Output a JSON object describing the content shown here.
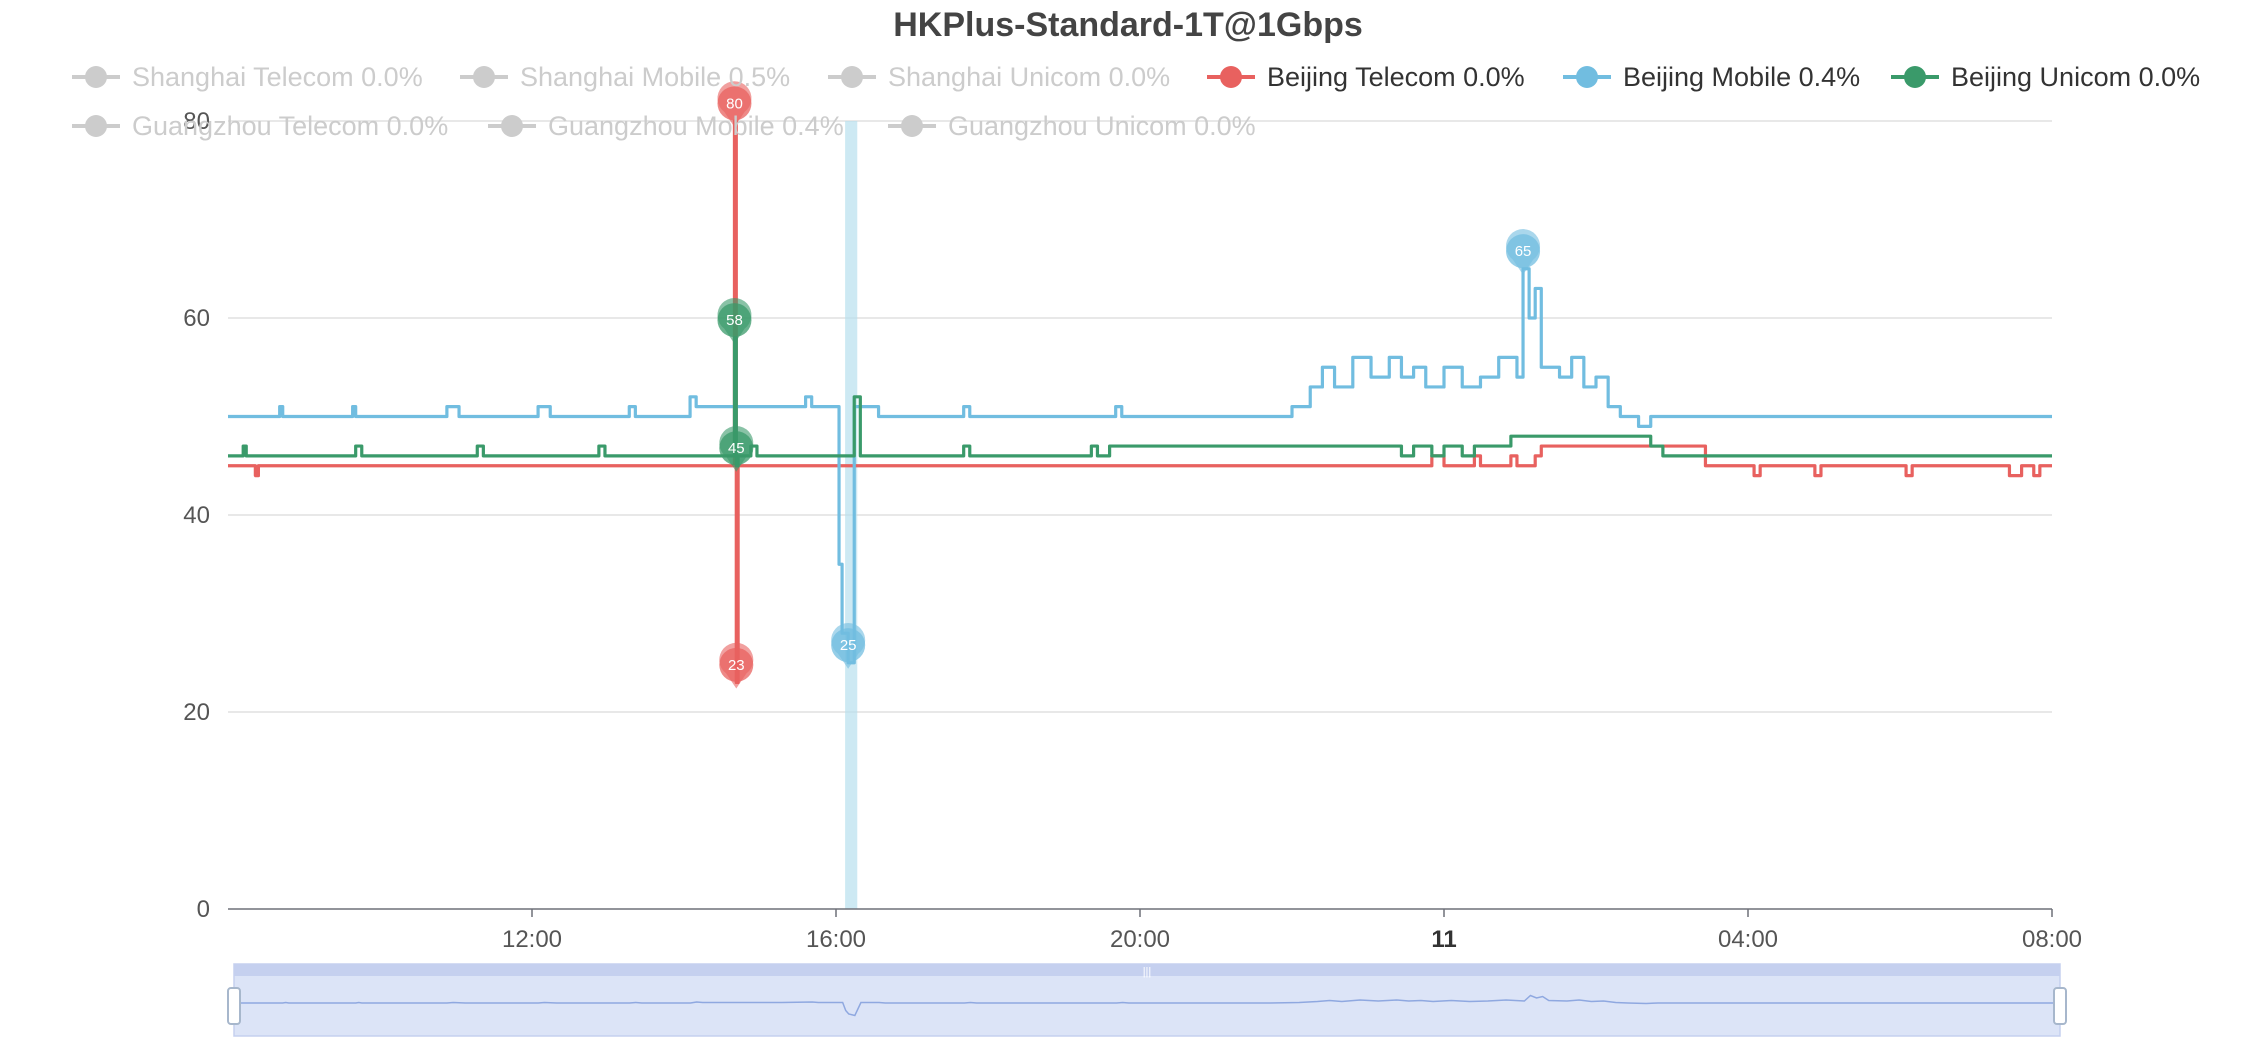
{
  "chart_data": {
    "type": "line",
    "title": "HKPlus-Standard-1T@1Gbps",
    "xlabel": "",
    "ylabel": "",
    "y_ticks": [
      "0",
      "20",
      "40",
      "60",
      "80"
    ],
    "ylim": [
      0,
      80
    ],
    "x_ticks": [
      "12:00",
      "16:00",
      "20:00",
      "11",
      "04:00",
      "08:00"
    ],
    "x_tick_bold": [
      false,
      false,
      false,
      true,
      false,
      false
    ],
    "grid": "horizontal",
    "legend_position": "top",
    "legend": [
      {
        "label": "Shanghai Telecom 0.0%",
        "active": false,
        "color": "#cccccc"
      },
      {
        "label": "Shanghai Mobile 0.5%",
        "active": false,
        "color": "#cccccc"
      },
      {
        "label": "Shanghai Unicom 0.0%",
        "active": false,
        "color": "#cccccc"
      },
      {
        "label": "Beijing Telecom 0.0%",
        "active": true,
        "color": "#e8615f"
      },
      {
        "label": "Beijing Mobile 0.4%",
        "active": true,
        "color": "#71bde0"
      },
      {
        "label": "Beijing Unicom 0.0%",
        "active": true,
        "color": "#3a9a6a"
      },
      {
        "label": "Guangzhou Telecom 0.0%",
        "active": false,
        "color": "#cccccc"
      },
      {
        "label": "Guangzhou Mobile 0.4%",
        "active": false,
        "color": "#cccccc"
      },
      {
        "label": "Guangzhou Unicom 0.0%",
        "active": false,
        "color": "#cccccc"
      }
    ],
    "x_unit": "hours from 08:00 on day 10",
    "series": [
      {
        "name": "Beijing Telecom",
        "color": "#e8615f",
        "points": [
          [
            0,
            45
          ],
          [
            0.4,
            45
          ],
          [
            0.45,
            44
          ],
          [
            0.5,
            45
          ],
          [
            8.3,
            45
          ],
          [
            8.33,
            80
          ],
          [
            8.36,
            23
          ],
          [
            8.39,
            45
          ],
          [
            19.6,
            45
          ],
          [
            19.8,
            46
          ],
          [
            20,
            45
          ],
          [
            20.5,
            46
          ],
          [
            20.6,
            45
          ],
          [
            21.1,
            46
          ],
          [
            21.2,
            45
          ],
          [
            21.5,
            46
          ],
          [
            21.6,
            47
          ],
          [
            24.2,
            47
          ],
          [
            24.3,
            45
          ],
          [
            25,
            45
          ],
          [
            25.1,
            44
          ],
          [
            25.2,
            45
          ],
          [
            26,
            45
          ],
          [
            26.1,
            44
          ],
          [
            26.2,
            45
          ],
          [
            27.5,
            45
          ],
          [
            27.6,
            44
          ],
          [
            27.7,
            45
          ],
          [
            29.2,
            45
          ],
          [
            29.3,
            44
          ],
          [
            29.5,
            45
          ],
          [
            29.7,
            44
          ],
          [
            29.8,
            45
          ],
          [
            30,
            45
          ]
        ],
        "markers": [
          {
            "value": 80,
            "x": 8.33
          },
          {
            "value": 23,
            "x": 8.36
          }
        ]
      },
      {
        "name": "Beijing Mobile",
        "color": "#71bde0",
        "points": [
          [
            0,
            50
          ],
          [
            0.8,
            50
          ],
          [
            0.85,
            51
          ],
          [
            0.9,
            50
          ],
          [
            2,
            50
          ],
          [
            2.05,
            51
          ],
          [
            2.1,
            50
          ],
          [
            3.5,
            50
          ],
          [
            3.6,
            51
          ],
          [
            3.8,
            50
          ],
          [
            5,
            50
          ],
          [
            5.1,
            51
          ],
          [
            5.3,
            50
          ],
          [
            6.5,
            50
          ],
          [
            6.6,
            51
          ],
          [
            6.7,
            50
          ],
          [
            7.5,
            50
          ],
          [
            7.6,
            52
          ],
          [
            7.7,
            51
          ],
          [
            8,
            51
          ],
          [
            9,
            51
          ],
          [
            9.5,
            52
          ],
          [
            9.6,
            51
          ],
          [
            10,
            51
          ],
          [
            10.05,
            35
          ],
          [
            10.1,
            28
          ],
          [
            10.2,
            25
          ],
          [
            10.3,
            51
          ],
          [
            10.6,
            51
          ],
          [
            10.7,
            50
          ],
          [
            12,
            50
          ],
          [
            12.1,
            51
          ],
          [
            12.2,
            50
          ],
          [
            14,
            50
          ],
          [
            14.5,
            50
          ],
          [
            14.6,
            51
          ],
          [
            14.7,
            50
          ],
          [
            17,
            50
          ],
          [
            17.5,
            51
          ],
          [
            17.8,
            53
          ],
          [
            18,
            55
          ],
          [
            18.2,
            53
          ],
          [
            18.5,
            56
          ],
          [
            18.8,
            54
          ],
          [
            19.1,
            56
          ],
          [
            19.3,
            54
          ],
          [
            19.5,
            55
          ],
          [
            19.7,
            53
          ],
          [
            20,
            55
          ],
          [
            20.3,
            53
          ],
          [
            20.6,
            54
          ],
          [
            20.9,
            56
          ],
          [
            21.2,
            54
          ],
          [
            21.3,
            65
          ],
          [
            21.4,
            60
          ],
          [
            21.5,
            63
          ],
          [
            21.6,
            55
          ],
          [
            21.9,
            54
          ],
          [
            22.1,
            56
          ],
          [
            22.3,
            53
          ],
          [
            22.5,
            54
          ],
          [
            22.7,
            51
          ],
          [
            22.9,
            50
          ],
          [
            23.2,
            49
          ],
          [
            23.4,
            50
          ],
          [
            30,
            50
          ]
        ],
        "markers": [
          {
            "value": 65,
            "x": 21.3
          },
          {
            "value": 25,
            "x": 10.2
          }
        ]
      },
      {
        "name": "Beijing Unicom",
        "color": "#3a9a6a",
        "points": [
          [
            0,
            46
          ],
          [
            0.2,
            46
          ],
          [
            0.25,
            47
          ],
          [
            0.3,
            46
          ],
          [
            2,
            46
          ],
          [
            2.1,
            47
          ],
          [
            2.2,
            46
          ],
          [
            4,
            46
          ],
          [
            4.1,
            47
          ],
          [
            4.2,
            46
          ],
          [
            6,
            46
          ],
          [
            6.1,
            47
          ],
          [
            6.2,
            46
          ],
          [
            8,
            46
          ],
          [
            8.3,
            46
          ],
          [
            8.33,
            58
          ],
          [
            8.36,
            45
          ],
          [
            8.39,
            46
          ],
          [
            8.5,
            46
          ],
          [
            8.6,
            47
          ],
          [
            8.7,
            46
          ],
          [
            10,
            46
          ],
          [
            10.3,
            52
          ],
          [
            10.4,
            46
          ],
          [
            12,
            46
          ],
          [
            12.1,
            47
          ],
          [
            12.2,
            46
          ],
          [
            14,
            46
          ],
          [
            14.2,
            47
          ],
          [
            14.3,
            46
          ],
          [
            14.5,
            47
          ],
          [
            17,
            47
          ],
          [
            19,
            47
          ],
          [
            19.3,
            46
          ],
          [
            19.5,
            47
          ],
          [
            19.8,
            46
          ],
          [
            20,
            47
          ],
          [
            20.3,
            46
          ],
          [
            20.5,
            47
          ],
          [
            21,
            47
          ],
          [
            21.1,
            48
          ],
          [
            23.3,
            48
          ],
          [
            23.4,
            47
          ],
          [
            23.6,
            46
          ],
          [
            30,
            46
          ]
        ],
        "markers": [
          {
            "value": 58,
            "x": 8.33
          },
          {
            "value": 45,
            "x": 8.36
          }
        ]
      }
    ],
    "highlight_band": {
      "x_start": 10.15,
      "x_end": 10.35,
      "color": "#b8e0ee"
    },
    "data_zoom": {
      "start_fraction": 0,
      "end_fraction": 1,
      "handle_label": "|||"
    }
  }
}
